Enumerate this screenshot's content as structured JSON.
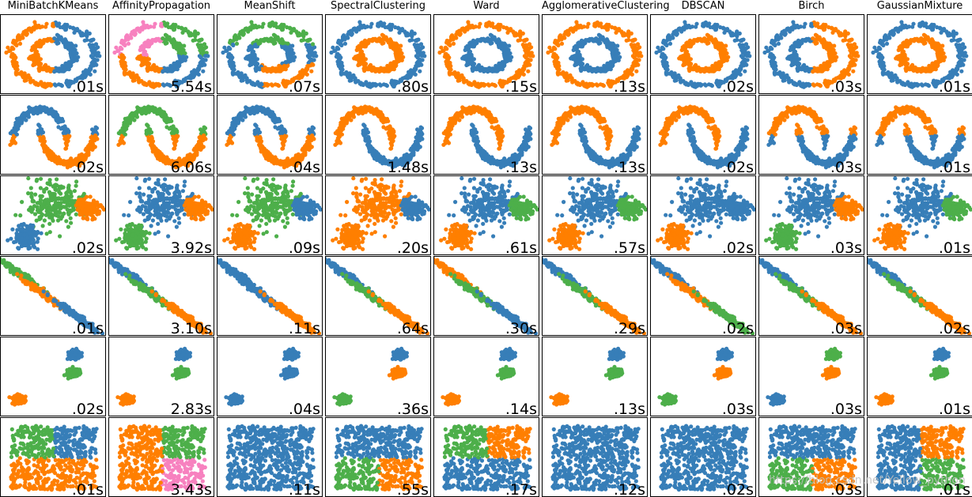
{
  "colors": {
    "blue": "#377eb8",
    "orange": "#ff7f00",
    "green": "#4daf4a",
    "pink": "#f781bf",
    "noise": "#000000"
  },
  "watermark": "https://blog.csdn.net/Yellow_python",
  "chart_data": {
    "type": "scatter",
    "algorithms": [
      "MiniBatchKMeans",
      "AffinityPropagation",
      "MeanShift",
      "SpectralClustering",
      "Ward",
      "AgglomerativeClustering",
      "DBSCAN",
      "Birch",
      "GaussianMixture"
    ],
    "datasets": [
      {
        "shape": "circles",
        "times": [
          ".01s",
          "5.54s",
          ".07s",
          ".80s",
          ".15s",
          ".13s",
          ".02s",
          ".03s",
          ".01s"
        ],
        "labels": [
          {
            "half": [
              "orange",
              "blue"
            ]
          },
          {
            "quad": [
              "pink",
              "green",
              "orange",
              "blue"
            ]
          },
          {
            "split3": [
              "blue",
              "green",
              "orange"
            ]
          },
          {
            "rings": [
              "blue",
              "orange"
            ]
          },
          {
            "rings": [
              "orange",
              "blue"
            ]
          },
          {
            "rings": [
              "orange",
              "blue"
            ]
          },
          {
            "rings": [
              "blue",
              "orange"
            ]
          },
          {
            "half": [
              "blue",
              "orange"
            ]
          },
          {
            "rings": [
              "blue",
              "orange"
            ]
          }
        ]
      },
      {
        "shape": "moons",
        "times": [
          ".02s",
          "6.06s",
          ".04s",
          "1.48s",
          ".13s",
          ".13s",
          ".02s",
          ".03s",
          ".01s"
        ],
        "labels": [
          {
            "moonsplit": [
              "blue",
              "orange"
            ]
          },
          {
            "moonsplit": [
              "green",
              "orange"
            ]
          },
          {
            "moonsplit": [
              "blue",
              "orange"
            ]
          },
          {
            "moons": [
              "orange",
              "blue"
            ]
          },
          {
            "moons": [
              "orange",
              "blue"
            ]
          },
          {
            "moons": [
              "orange",
              "blue"
            ]
          },
          {
            "moons": [
              "orange",
              "blue"
            ]
          },
          {
            "moonsplit": [
              "orange",
              "blue"
            ]
          },
          {
            "moonsplit": [
              "orange",
              "blue"
            ]
          }
        ]
      },
      {
        "shape": "varied",
        "times": [
          ".02s",
          "3.92s",
          ".09s",
          ".20s",
          ".61s",
          ".57s",
          ".02s",
          ".03s",
          ".01s"
        ],
        "labels": [
          [
            "green",
            "orange",
            "blue"
          ],
          [
            "blue",
            "orange",
            "green"
          ],
          [
            "green",
            "blue",
            "orange"
          ],
          [
            "orange",
            "blue",
            "orange"
          ],
          [
            "blue",
            "green",
            "orange"
          ],
          [
            "blue",
            "green",
            "orange"
          ],
          [
            "blue",
            "blue",
            "orange"
          ],
          [
            "blue",
            "orange",
            "green"
          ],
          [
            "blue",
            "green",
            "orange"
          ]
        ]
      },
      {
        "shape": "aniso",
        "times": [
          ".01s",
          "3.10s",
          ".11s",
          ".64s",
          ".30s",
          ".29s",
          ".02s",
          ".03s",
          ".02s"
        ],
        "labels": [
          [
            "green",
            "orange",
            "blue"
          ],
          [
            "blue",
            "green",
            "orange"
          ],
          [
            "blue",
            "blue",
            "orange"
          ],
          [
            "blue",
            "green",
            "orange"
          ],
          [
            "orange",
            "green",
            "blue"
          ],
          [
            "blue",
            "green",
            "orange"
          ],
          [
            "blue",
            "orange",
            "green"
          ],
          [
            "blue",
            "green",
            "orange"
          ],
          [
            "blue",
            "green",
            "orange"
          ]
        ]
      },
      {
        "shape": "blobs",
        "times": [
          ".02s",
          "2.83s",
          ".04s",
          ".36s",
          ".14s",
          ".13s",
          ".03s",
          ".03s",
          ".01s"
        ],
        "labels": [
          [
            "blue",
            "green",
            "orange"
          ],
          [
            "blue",
            "green",
            "orange"
          ],
          [
            "blue",
            "blue",
            "blue"
          ],
          [
            "blue",
            "orange",
            "green"
          ],
          [
            "blue",
            "green",
            "orange"
          ],
          [
            "blue",
            "green",
            "orange"
          ],
          [
            "blue",
            "orange",
            "green"
          ],
          [
            "green",
            "orange",
            "blue"
          ],
          [
            "blue",
            "green",
            "orange"
          ]
        ]
      },
      {
        "shape": "uniform",
        "times": [
          ".01s",
          "3.43s",
          ".11s",
          ".55s",
          ".17s",
          ".12s",
          ".02s",
          ".03s",
          ".01s"
        ],
        "labels": [
          {
            "quad": [
              "green",
              "blue",
              "orange",
              "orange"
            ]
          },
          {
            "quad": [
              "orange",
              "green",
              "orange",
              "pink"
            ]
          },
          {
            "quad": [
              "blue",
              "blue",
              "blue",
              "blue"
            ]
          },
          {
            "quad": [
              "blue",
              "blue",
              "green",
              "orange"
            ]
          },
          {
            "quad": [
              "green",
              "orange",
              "blue",
              "blue"
            ]
          },
          {
            "quad": [
              "blue",
              "blue",
              "blue",
              "blue"
            ]
          },
          {
            "quad": [
              "blue",
              "blue",
              "blue",
              "blue"
            ]
          },
          {
            "quad": [
              "blue",
              "blue",
              "green",
              "orange"
            ]
          },
          {
            "quad": [
              "blue",
              "orange",
              "blue",
              "green"
            ]
          }
        ]
      }
    ]
  }
}
